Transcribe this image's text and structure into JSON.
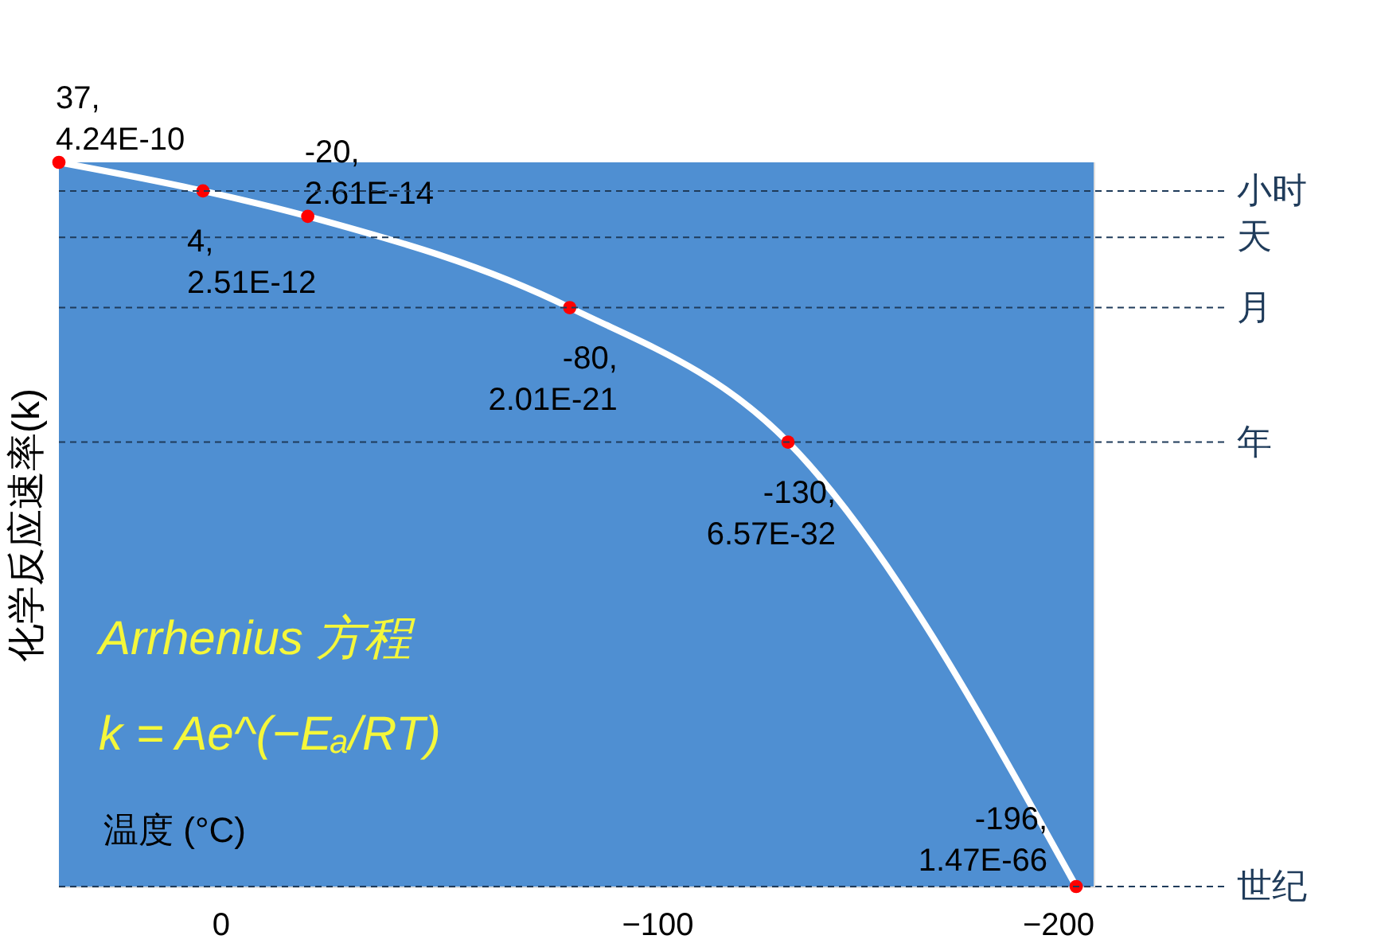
{
  "chart_data": {
    "type": "line",
    "x": [
      37,
      4,
      -20,
      -80,
      -130,
      -196
    ],
    "series": [
      {
        "color": "#ffffff",
        "values": [
          4.24e-10,
          2.51e-12,
          2.61e-14,
          2.01e-21,
          6.57e-32,
          1.47e-66
        ]
      },
      {
        "type": "scatter",
        "marker": "circle",
        "color": "#ff0000",
        "values": [
          4.24e-10,
          2.51e-12,
          2.61e-14,
          2.01e-21,
          6.57e-32,
          1.47e-66
        ],
        "value_labels": [
          "4.24E-10",
          "2.51E-12",
          "2.61E-14",
          "2.01E-21",
          "6.57E-32",
          "1.47E-66"
        ]
      }
    ],
    "log": "y",
    "xlim": [
      37,
      -200
    ],
    "xticks": [
      0,
      -100,
      -200
    ],
    "ylim": [
      1.47e-66,
      4.24e-10
    ],
    "tick_labels": "x",
    "ylabel": "化学反应速率(k)",
    "xlabel": "温度 (°C)",
    "ref_lines": [
      {
        "axis": "y",
        "value": 2.51e-12,
        "label": "小时",
        "color": "#1f3b5a",
        "line_style": "dashed"
      },
      {
        "axis": "y",
        "value": 6e-16,
        "label": "天",
        "color": "#1f3b5a",
        "line_style": "dashed"
      },
      {
        "axis": "y",
        "value": 2.01e-21,
        "label": "月",
        "color": "#1f3b5a",
        "line_style": "dashed"
      },
      {
        "axis": "y",
        "value": 6.57e-32,
        "label": "年",
        "color": "#1f3b5a",
        "line_style": "dashed"
      },
      {
        "axis": "y",
        "value": 1.47e-66,
        "label": "世纪",
        "color": "#1f3b5a",
        "line_style": "dashed"
      }
    ],
    "annotations": [
      "Arrhenius 方程",
      "k = Ae^(−Eₐ/RT)",
      {
        "text": "37,",
        "x": 37,
        "y": 4.24e-10
      },
      {
        "text": "4,",
        "x": 4,
        "y": 2.51e-12
      },
      {
        "text": "-20,",
        "x": -20,
        "y": 2.61e-14
      },
      {
        "text": "-80,",
        "x": -80,
        "y": 2.01e-21
      },
      {
        "text": "-130,",
        "x": -130,
        "y": 6.57e-32
      },
      {
        "text": "-196,",
        "x": -196,
        "y": 1.47e-66
      }
    ]
  }
}
